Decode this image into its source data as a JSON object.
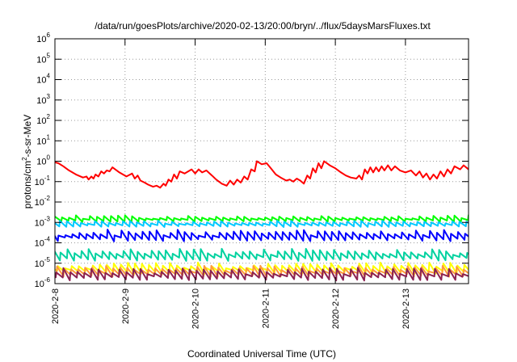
{
  "chart_data": {
    "type": "line",
    "title": "/data/run/goesPlots/archive/2020-02-13/20:00/bryn/../flux/5daysMarsFluxes.txt",
    "xlabel": "Coordinated Universal Time (UTC)",
    "ylabel": {
      "prefix": "protons/cm",
      "sup": "2",
      "suffix": "-s-sr-MeV"
    },
    "yscale": "log",
    "ylim": [
      1e-06,
      1000000.0
    ],
    "xlim": [
      0,
      5.9
    ],
    "grid": true,
    "y_ticks": [
      {
        "value": -6,
        "base": "10",
        "exp": "-6"
      },
      {
        "value": -5,
        "base": "10",
        "exp": "-5"
      },
      {
        "value": -4,
        "base": "10",
        "exp": "-4"
      },
      {
        "value": -3,
        "base": "10",
        "exp": "-3"
      },
      {
        "value": -2,
        "base": "10",
        "exp": "-2"
      },
      {
        "value": -1,
        "base": "10",
        "exp": "-1"
      },
      {
        "value": 0,
        "base": "10",
        "exp": "0"
      },
      {
        "value": 1,
        "base": "10",
        "exp": "1"
      },
      {
        "value": 2,
        "base": "10",
        "exp": "2"
      },
      {
        "value": 3,
        "base": "10",
        "exp": "3"
      },
      {
        "value": 4,
        "base": "10",
        "exp": "4"
      },
      {
        "value": 5,
        "base": "10",
        "exp": "5"
      },
      {
        "value": 6,
        "base": "10",
        "exp": "6"
      }
    ],
    "x_ticks": [
      {
        "value": 0,
        "label": "2020-2-8"
      },
      {
        "value": 1,
        "label": "2020-2-9"
      },
      {
        "value": 2,
        "label": "2020-2-10"
      },
      {
        "value": 3,
        "label": "2020-2-11"
      },
      {
        "value": 4,
        "label": "2020-2-12"
      },
      {
        "value": 5,
        "label": "2020-2-13"
      }
    ],
    "series": [
      {
        "color": "#ff0000",
        "kind": "smooth",
        "points": [
          [
            0.0,
            -0.05
          ],
          [
            0.05,
            -0.1
          ],
          [
            0.12,
            -0.25
          ],
          [
            0.2,
            -0.45
          ],
          [
            0.3,
            -0.65
          ],
          [
            0.4,
            -0.8
          ],
          [
            0.45,
            -0.75
          ],
          [
            0.48,
            -0.9
          ],
          [
            0.52,
            -0.75
          ],
          [
            0.55,
            -0.85
          ],
          [
            0.58,
            -0.65
          ],
          [
            0.62,
            -0.75
          ],
          [
            0.66,
            -0.5
          ],
          [
            0.7,
            -0.6
          ],
          [
            0.74,
            -0.45
          ],
          [
            0.78,
            -0.5
          ],
          [
            0.82,
            -0.3
          ],
          [
            0.92,
            -0.55
          ],
          [
            1.02,
            -0.75
          ],
          [
            1.1,
            -0.6
          ],
          [
            1.14,
            -0.85
          ],
          [
            1.18,
            -0.7
          ],
          [
            1.22,
            -0.95
          ],
          [
            1.28,
            -1.05
          ],
          [
            1.33,
            -1.15
          ],
          [
            1.4,
            -1.25
          ],
          [
            1.45,
            -1.2
          ],
          [
            1.5,
            -1.3
          ],
          [
            1.55,
            -1.1
          ],
          [
            1.58,
            -1.2
          ],
          [
            1.62,
            -0.9
          ],
          [
            1.66,
            -1.0
          ],
          [
            1.7,
            -0.65
          ],
          [
            1.74,
            -0.85
          ],
          [
            1.78,
            -0.5
          ],
          [
            1.85,
            -0.6
          ],
          [
            1.95,
            -0.4
          ],
          [
            2.0,
            -0.6
          ],
          [
            2.05,
            -0.4
          ],
          [
            2.1,
            -0.55
          ],
          [
            2.16,
            -0.45
          ],
          [
            2.24,
            -0.7
          ],
          [
            2.3,
            -0.9
          ],
          [
            2.38,
            -1.1
          ],
          [
            2.45,
            -1.2
          ],
          [
            2.5,
            -0.95
          ],
          [
            2.55,
            -1.15
          ],
          [
            2.6,
            -0.9
          ],
          [
            2.65,
            -1.05
          ],
          [
            2.7,
            -0.75
          ],
          [
            2.75,
            -0.9
          ],
          [
            2.8,
            -0.4
          ],
          [
            2.85,
            -0.5
          ],
          [
            2.88,
            0.0
          ],
          [
            2.95,
            -0.15
          ],
          [
            3.02,
            -0.1
          ],
          [
            3.08,
            -0.35
          ],
          [
            3.15,
            -0.65
          ],
          [
            3.22,
            -0.8
          ],
          [
            3.3,
            -0.95
          ],
          [
            3.35,
            -0.9
          ],
          [
            3.4,
            -1.0
          ],
          [
            3.45,
            -0.85
          ],
          [
            3.5,
            -0.95
          ],
          [
            3.55,
            -1.1
          ],
          [
            3.6,
            -0.7
          ],
          [
            3.64,
            -0.85
          ],
          [
            3.68,
            -0.35
          ],
          [
            3.72,
            -0.55
          ],
          [
            3.76,
            -0.1
          ],
          [
            3.8,
            -0.35
          ],
          [
            3.84,
            0.0
          ],
          [
            3.92,
            -0.2
          ],
          [
            4.0,
            -0.35
          ],
          [
            4.08,
            -0.55
          ],
          [
            4.15,
            -0.7
          ],
          [
            4.22,
            -0.8
          ],
          [
            4.3,
            -0.85
          ],
          [
            4.34,
            -0.7
          ],
          [
            4.38,
            -0.9
          ],
          [
            4.42,
            -0.4
          ],
          [
            4.46,
            -0.6
          ],
          [
            4.5,
            -0.3
          ],
          [
            4.54,
            -0.55
          ],
          [
            4.58,
            -0.3
          ],
          [
            4.62,
            -0.5
          ],
          [
            4.66,
            -0.25
          ],
          [
            4.7,
            -0.45
          ],
          [
            4.75,
            -0.2
          ],
          [
            4.8,
            -0.45
          ],
          [
            4.85,
            -0.25
          ],
          [
            4.92,
            -0.45
          ],
          [
            5.0,
            -0.55
          ],
          [
            5.08,
            -0.45
          ],
          [
            5.15,
            -0.7
          ],
          [
            5.2,
            -0.5
          ],
          [
            5.25,
            -0.8
          ],
          [
            5.3,
            -0.6
          ],
          [
            5.35,
            -0.9
          ],
          [
            5.4,
            -0.65
          ],
          [
            5.45,
            -0.85
          ],
          [
            5.5,
            -0.5
          ],
          [
            5.55,
            -0.75
          ],
          [
            5.6,
            -0.4
          ],
          [
            5.65,
            -0.6
          ],
          [
            5.7,
            -0.25
          ],
          [
            5.78,
            -0.4
          ],
          [
            5.83,
            -0.2
          ],
          [
            5.9,
            -0.4
          ]
        ]
      },
      {
        "color": "#00ff00",
        "kind": "saw",
        "base": -2.85,
        "amp": 0.5,
        "period": 0.1,
        "phase": 0.0
      },
      {
        "color": "#00c8ff",
        "kind": "saw",
        "base": -3.1,
        "amp": 0.45,
        "period": 0.1,
        "phase": 0.03
      },
      {
        "color": "#0000ff",
        "kind": "saw",
        "base": -3.7,
        "amp": 0.85,
        "period": 0.1,
        "phase": 0.05
      },
      {
        "color": "#00d2a0",
        "kind": "saw",
        "base": -4.65,
        "amp": 0.85,
        "period": 0.1,
        "phase": 0.02
      },
      {
        "color": "#ffff00",
        "kind": "saw",
        "base": -5.3,
        "amp": 0.8,
        "period": 0.1,
        "phase": 0.06
      },
      {
        "color": "#ff9a3c",
        "kind": "saw",
        "base": -5.45,
        "amp": 0.8,
        "period": 0.1,
        "phase": 0.07
      },
      {
        "color": "#8b2252",
        "kind": "saw",
        "base": -5.6,
        "amp": 0.9,
        "period": 0.1,
        "phase": 0.08
      }
    ]
  }
}
